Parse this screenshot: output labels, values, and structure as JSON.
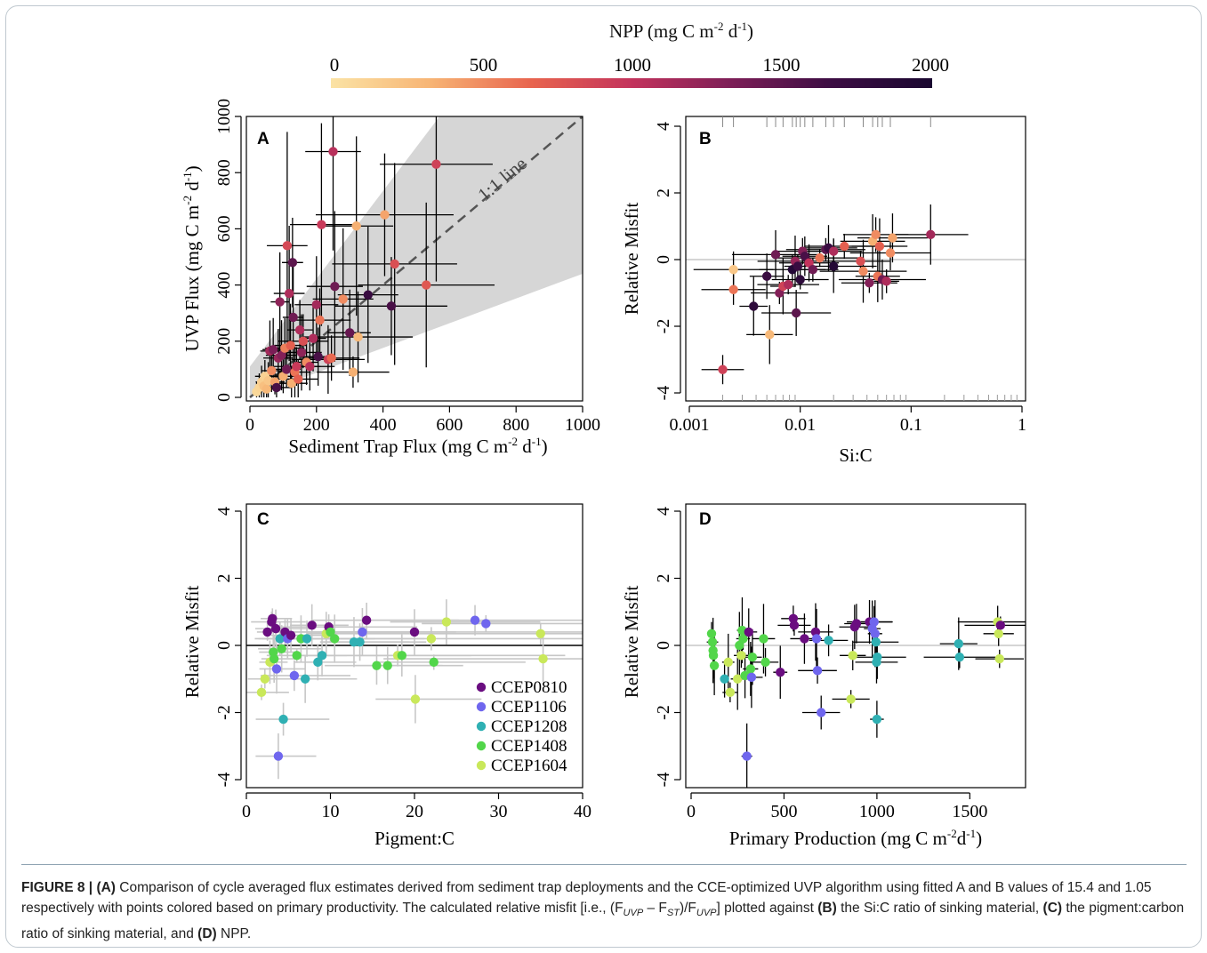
{
  "colorbar": {
    "title_pre": "NPP (mg C m",
    "title_sup1": "-2",
    "title_mid": " d",
    "title_sup2": "-1",
    "title_post": ")",
    "ticks": [
      0,
      500,
      1000,
      1500,
      2000
    ],
    "stops": [
      "#fbe3a5",
      "#f7b474",
      "#e8644e",
      "#c3335c",
      "#7c1e57",
      "#3c0d43",
      "#1a0730"
    ]
  },
  "colors": {
    "grey_line": "#c7c7c7",
    "cloud": "#d6d6d6",
    "ref_dash": "#555555"
  },
  "panels": [
    {
      "id": "A",
      "letter": "A",
      "ylabel_pre": "UVP Flux (mg C m",
      "ylabel_post": " d",
      "xlabel_pre": "Sediment Trap Flux (mg C m",
      "xlabel_post": " d",
      "yticks": [
        0,
        200,
        400,
        600,
        800,
        1000
      ],
      "xticks": [
        0,
        200,
        400,
        600,
        800,
        1000
      ],
      "annotation": "1:1 line"
    },
    {
      "id": "B",
      "letter": "B",
      "ylabel": "Relative Misfit",
      "xlabel": "Si:C",
      "yticks": [
        -4,
        -2,
        0,
        2,
        4
      ],
      "xticks": [
        "0.001",
        "0.01",
        "0.1",
        "1"
      ]
    },
    {
      "id": "C",
      "letter": "C",
      "ylabel": "Relative Misfit",
      "xlabel": "Pigment:C",
      "yticks": [
        -4,
        -2,
        0,
        2,
        4
      ],
      "xticks": [
        0,
        10,
        20,
        30,
        40
      ]
    },
    {
      "id": "D",
      "letter": "D",
      "ylabel": "Relative Misfit",
      "xlabel_pre": "Primary Production (mg C m",
      "xlabel_post": "d",
      "yticks": [
        -4,
        -2,
        0,
        2,
        4
      ],
      "xticks": [
        0,
        500,
        1000,
        1500
      ]
    }
  ],
  "sup": {
    "m2": "-2",
    "d1": "-1"
  },
  "legend": [
    {
      "name": "CCEP0810",
      "color": "#6a0d80"
    },
    {
      "name": "CCEP1106",
      "color": "#6f66ee"
    },
    {
      "name": "CCEP1208",
      "color": "#2fb0b3"
    },
    {
      "name": "CCEP1408",
      "color": "#52d64a"
    },
    {
      "name": "CCEP1604",
      "color": "#c9e85a"
    }
  ],
  "caption": {
    "fig": "FIGURE 8 | ",
    "a": "(A)",
    "t1": " Comparison of cycle averaged flux estimates derived from sediment trap deployments and the CCE-optimized UVP algorithm using fitted A and B values of 15.4 and 1.05 respectively with points colored based on primary productivity. The calculated relative misfit [i.e., (F",
    "s1": "UVP",
    "t2": " – F",
    "s2": "ST",
    "t3": ")/F",
    "s3": "UVP",
    "t4": "] plotted against ",
    "b": "(B)",
    "t5": " the Si:C ratio of sinking material, ",
    "c": "(C)",
    "t6": " the pigment:carbon ratio of sinking material, and ",
    "d": "(D)",
    "t7": " NPP."
  },
  "chart_data": [
    {
      "panel": "A",
      "type": "scatter",
      "xlim": [
        0,
        1000
      ],
      "ylim": [
        0,
        1000
      ],
      "color_by": "NPP",
      "points": [
        {
          "x": 20,
          "y": 20,
          "npp": 80
        },
        {
          "x": 28,
          "y": 35,
          "npp": 100
        },
        {
          "x": 35,
          "y": 55,
          "npp": 150
        },
        {
          "x": 42,
          "y": 40,
          "npp": 250
        },
        {
          "x": 45,
          "y": 75,
          "npp": 120
        },
        {
          "x": 50,
          "y": 30,
          "npp": 300
        },
        {
          "x": 55,
          "y": 60,
          "npp": 200
        },
        {
          "x": 60,
          "y": 165,
          "npp": 1150
        },
        {
          "x": 65,
          "y": 95,
          "npp": 500
        },
        {
          "x": 70,
          "y": 170,
          "npp": 1350
        },
        {
          "x": 75,
          "y": 55,
          "npp": 400
        },
        {
          "x": 80,
          "y": 35,
          "npp": 1600
        },
        {
          "x": 85,
          "y": 140,
          "npp": 1200
        },
        {
          "x": 90,
          "y": 340,
          "npp": 1250
        },
        {
          "x": 95,
          "y": 150,
          "npp": 1300
        },
        {
          "x": 100,
          "y": 75,
          "npp": 350
        },
        {
          "x": 105,
          "y": 175,
          "npp": 550
        },
        {
          "x": 110,
          "y": 100,
          "npp": 1400
        },
        {
          "x": 112,
          "y": 540,
          "npp": 850
        },
        {
          "x": 118,
          "y": 370,
          "npp": 1100
        },
        {
          "x": 122,
          "y": 185,
          "npp": 700
        },
        {
          "x": 125,
          "y": 50,
          "npp": 350
        },
        {
          "x": 128,
          "y": 480,
          "npp": 1500
        },
        {
          "x": 130,
          "y": 285,
          "npp": 1400
        },
        {
          "x": 135,
          "y": 90,
          "npp": 600
        },
        {
          "x": 140,
          "y": 110,
          "npp": 950
        },
        {
          "x": 145,
          "y": 65,
          "npp": 700
        },
        {
          "x": 150,
          "y": 240,
          "npp": 1100
        },
        {
          "x": 155,
          "y": 160,
          "npp": 1250
        },
        {
          "x": 160,
          "y": 200,
          "npp": 800
        },
        {
          "x": 170,
          "y": 125,
          "npp": 500
        },
        {
          "x": 180,
          "y": 110,
          "npp": 1050
        },
        {
          "x": 190,
          "y": 210,
          "npp": 1100
        },
        {
          "x": 200,
          "y": 330,
          "npp": 1150
        },
        {
          "x": 205,
          "y": 145,
          "npp": 1600
        },
        {
          "x": 210,
          "y": 275,
          "npp": 600
        },
        {
          "x": 215,
          "y": 615,
          "npp": 950
        },
        {
          "x": 235,
          "y": 135,
          "npp": 900
        },
        {
          "x": 245,
          "y": 140,
          "npp": 650
        },
        {
          "x": 250,
          "y": 875,
          "npp": 1050
        },
        {
          "x": 255,
          "y": 395,
          "npp": 1400
        },
        {
          "x": 280,
          "y": 350,
          "npp": 500
        },
        {
          "x": 300,
          "y": 230,
          "npp": 1450
        },
        {
          "x": 310,
          "y": 90,
          "npp": 350
        },
        {
          "x": 320,
          "y": 610,
          "npp": 350
        },
        {
          "x": 325,
          "y": 215,
          "npp": 300
        },
        {
          "x": 355,
          "y": 365,
          "npp": 1700
        },
        {
          "x": 405,
          "y": 650,
          "npp": 400
        },
        {
          "x": 425,
          "y": 325,
          "npp": 1600
        },
        {
          "x": 435,
          "y": 475,
          "npp": 800
        },
        {
          "x": 530,
          "y": 400,
          "npp": 750
        },
        {
          "x": 560,
          "y": 830,
          "npp": 900
        }
      ]
    },
    {
      "panel": "B",
      "type": "scatter",
      "xscale": "log",
      "xlim": [
        0.001,
        1
      ],
      "ylim": [
        -4,
        4
      ],
      "color_by": "NPP",
      "points": [
        {
          "x": 0.002,
          "y": -3.3,
          "npp": 900
        },
        {
          "x": 0.0025,
          "y": -0.3,
          "npp": 200
        },
        {
          "x": 0.0025,
          "y": -0.9,
          "npp": 600
        },
        {
          "x": 0.0038,
          "y": -1.4,
          "npp": 1800
        },
        {
          "x": 0.005,
          "y": -0.5,
          "npp": 1700
        },
        {
          "x": 0.0053,
          "y": -2.25,
          "npp": 300
        },
        {
          "x": 0.006,
          "y": 0.15,
          "npp": 1400
        },
        {
          "x": 0.0065,
          "y": -1.0,
          "npp": 1300
        },
        {
          "x": 0.007,
          "y": -0.8,
          "npp": 900
        },
        {
          "x": 0.0078,
          "y": -0.75,
          "npp": 1100
        },
        {
          "x": 0.0085,
          "y": -0.3,
          "npp": 1900
        },
        {
          "x": 0.009,
          "y": -0.05,
          "npp": 1200
        },
        {
          "x": 0.0092,
          "y": -1.6,
          "npp": 1500
        },
        {
          "x": 0.0095,
          "y": -0.2,
          "npp": 1700
        },
        {
          "x": 0.01,
          "y": -0.6,
          "npp": 1800
        },
        {
          "x": 0.0105,
          "y": 0.25,
          "npp": 1300
        },
        {
          "x": 0.011,
          "y": 0.1,
          "npp": 1600
        },
        {
          "x": 0.012,
          "y": -0.1,
          "npp": 1000
        },
        {
          "x": 0.013,
          "y": -0.3,
          "npp": 1400
        },
        {
          "x": 0.015,
          "y": 0.05,
          "npp": 600
        },
        {
          "x": 0.017,
          "y": 0.3,
          "npp": 1500
        },
        {
          "x": 0.018,
          "y": 0.35,
          "npp": 1700
        },
        {
          "x": 0.02,
          "y": -0.2,
          "npp": 1900
        },
        {
          "x": 0.02,
          "y": 0.25,
          "npp": 1100
        },
        {
          "x": 0.025,
          "y": 0.4,
          "npp": 700
        },
        {
          "x": 0.035,
          "y": -0.05,
          "npp": 800
        },
        {
          "x": 0.037,
          "y": -0.35,
          "npp": 500
        },
        {
          "x": 0.042,
          "y": -0.7,
          "npp": 1300
        },
        {
          "x": 0.045,
          "y": 0.55,
          "npp": 350
        },
        {
          "x": 0.048,
          "y": 0.75,
          "npp": 500
        },
        {
          "x": 0.05,
          "y": -0.5,
          "npp": 600
        },
        {
          "x": 0.052,
          "y": 0.4,
          "npp": 700
        },
        {
          "x": 0.055,
          "y": -0.6,
          "npp": 1400
        },
        {
          "x": 0.06,
          "y": -0.65,
          "npp": 1100
        },
        {
          "x": 0.065,
          "y": 0.2,
          "npp": 500
        },
        {
          "x": 0.068,
          "y": 0.65,
          "npp": 400
        },
        {
          "x": 0.15,
          "y": 0.75,
          "npp": 1150
        }
      ]
    },
    {
      "panel": "C",
      "type": "scatter",
      "xlim": [
        0,
        40
      ],
      "ylim": [
        -4,
        4
      ],
      "group_by": "cruise",
      "points": [
        {
          "x": 1.8,
          "y": -1.4,
          "g": 4
        },
        {
          "x": 2.2,
          "y": -1.0,
          "g": 4
        },
        {
          "x": 2.5,
          "y": 0.4,
          "g": 0
        },
        {
          "x": 2.8,
          "y": -0.5,
          "g": 4
        },
        {
          "x": 3.0,
          "y": 0.7,
          "g": 0
        },
        {
          "x": 3.1,
          "y": 0.8,
          "g": 0
        },
        {
          "x": 3.2,
          "y": -0.2,
          "g": 3
        },
        {
          "x": 3.3,
          "y": -0.4,
          "g": 3
        },
        {
          "x": 3.5,
          "y": 0.5,
          "g": 0
        },
        {
          "x": 3.6,
          "y": -0.7,
          "g": 1
        },
        {
          "x": 3.8,
          "y": -3.3,
          "g": 1
        },
        {
          "x": 4.0,
          "y": 0.2,
          "g": 2
        },
        {
          "x": 4.2,
          "y": -0.1,
          "g": 3
        },
        {
          "x": 4.4,
          "y": -2.2,
          "g": 2
        },
        {
          "x": 4.6,
          "y": 0.4,
          "g": 0
        },
        {
          "x": 4.9,
          "y": 0.2,
          "g": 1
        },
        {
          "x": 5.3,
          "y": 0.3,
          "g": 0
        },
        {
          "x": 5.7,
          "y": -0.9,
          "g": 1
        },
        {
          "x": 6.0,
          "y": -0.3,
          "g": 3
        },
        {
          "x": 6.5,
          "y": 0.2,
          "g": 3
        },
        {
          "x": 7.0,
          "y": -1.0,
          "g": 2
        },
        {
          "x": 7.2,
          "y": 0.2,
          "g": 2
        },
        {
          "x": 7.8,
          "y": 0.6,
          "g": 0
        },
        {
          "x": 8.5,
          "y": -0.5,
          "g": 2
        },
        {
          "x": 9.0,
          "y": -0.3,
          "g": 2
        },
        {
          "x": 9.5,
          "y": 0.35,
          "g": 4
        },
        {
          "x": 9.8,
          "y": 0.55,
          "g": 0
        },
        {
          "x": 10.0,
          "y": 0.4,
          "g": 3
        },
        {
          "x": 10.5,
          "y": 0.2,
          "g": 3
        },
        {
          "x": 12.8,
          "y": 0.1,
          "g": 2
        },
        {
          "x": 13.5,
          "y": 0.1,
          "g": 2
        },
        {
          "x": 13.8,
          "y": 0.4,
          "g": 1
        },
        {
          "x": 14.3,
          "y": 0.75,
          "g": 0
        },
        {
          "x": 15.5,
          "y": -0.6,
          "g": 3
        },
        {
          "x": 16.8,
          "y": -0.6,
          "g": 3
        },
        {
          "x": 18.0,
          "y": -0.3,
          "g": 4
        },
        {
          "x": 18.5,
          "y": -0.3,
          "g": 3
        },
        {
          "x": 20.0,
          "y": 0.4,
          "g": 0
        },
        {
          "x": 20.1,
          "y": -1.6,
          "g": 4
        },
        {
          "x": 22.0,
          "y": 0.2,
          "g": 4
        },
        {
          "x": 22.3,
          "y": -0.5,
          "g": 3
        },
        {
          "x": 23.8,
          "y": 0.7,
          "g": 4
        },
        {
          "x": 27.2,
          "y": 0.75,
          "g": 1
        },
        {
          "x": 28.5,
          "y": 0.65,
          "g": 1
        },
        {
          "x": 35.0,
          "y": 0.35,
          "g": 4
        },
        {
          "x": 35.3,
          "y": -0.4,
          "g": 4
        }
      ]
    },
    {
      "panel": "D",
      "type": "scatter",
      "xlim": [
        0,
        1800
      ],
      "ylim": [
        -4,
        4
      ],
      "group_by": "cruise",
      "points": [
        {
          "x": 110,
          "y": 0.35,
          "g": 3
        },
        {
          "x": 115,
          "y": 0.1,
          "g": 3
        },
        {
          "x": 118,
          "y": -0.15,
          "g": 3
        },
        {
          "x": 120,
          "y": -0.3,
          "g": 3
        },
        {
          "x": 125,
          "y": -0.6,
          "g": 3
        },
        {
          "x": 180,
          "y": -1.0,
          "g": 2
        },
        {
          "x": 200,
          "y": -0.5,
          "g": 4
        },
        {
          "x": 210,
          "y": -1.4,
          "g": 4
        },
        {
          "x": 250,
          "y": -1.0,
          "g": 4
        },
        {
          "x": 260,
          "y": 0.0,
          "g": 3
        },
        {
          "x": 270,
          "y": -0.3,
          "g": 4
        },
        {
          "x": 275,
          "y": 0.45,
          "g": 3
        },
        {
          "x": 280,
          "y": 0.2,
          "g": 3
        },
        {
          "x": 290,
          "y": -0.9,
          "g": 3
        },
        {
          "x": 300,
          "y": -3.3,
          "g": 1
        },
        {
          "x": 310,
          "y": 0.4,
          "g": 0
        },
        {
          "x": 320,
          "y": -0.7,
          "g": 3
        },
        {
          "x": 325,
          "y": -0.95,
          "g": 1
        },
        {
          "x": 330,
          "y": -0.35,
          "g": 3
        },
        {
          "x": 390,
          "y": 0.2,
          "g": 3
        },
        {
          "x": 400,
          "y": -0.5,
          "g": 3
        },
        {
          "x": 480,
          "y": -0.8,
          "g": 0
        },
        {
          "x": 550,
          "y": 0.8,
          "g": 0
        },
        {
          "x": 555,
          "y": 0.6,
          "g": 0
        },
        {
          "x": 610,
          "y": 0.2,
          "g": 0
        },
        {
          "x": 670,
          "y": 0.4,
          "g": 0
        },
        {
          "x": 675,
          "y": 0.2,
          "g": 1
        },
        {
          "x": 680,
          "y": -0.75,
          "g": 1
        },
        {
          "x": 700,
          "y": -2.0,
          "g": 1
        },
        {
          "x": 740,
          "y": 0.15,
          "g": 2
        },
        {
          "x": 860,
          "y": -1.6,
          "g": 4
        },
        {
          "x": 870,
          "y": -0.3,
          "g": 4
        },
        {
          "x": 880,
          "y": 0.55,
          "g": 0
        },
        {
          "x": 890,
          "y": 0.65,
          "g": 0
        },
        {
          "x": 960,
          "y": 0.7,
          "g": 0
        },
        {
          "x": 975,
          "y": 0.5,
          "g": 1
        },
        {
          "x": 985,
          "y": 0.7,
          "g": 1
        },
        {
          "x": 990,
          "y": 0.35,
          "g": 1
        },
        {
          "x": 995,
          "y": 0.1,
          "g": 2
        },
        {
          "x": 998,
          "y": -0.5,
          "g": 2
        },
        {
          "x": 1000,
          "y": -2.2,
          "g": 2
        },
        {
          "x": 1002,
          "y": -0.35,
          "g": 2
        },
        {
          "x": 1440,
          "y": 0.05,
          "g": 2
        },
        {
          "x": 1445,
          "y": -0.35,
          "g": 2
        },
        {
          "x": 1650,
          "y": 0.7,
          "g": 4
        },
        {
          "x": 1655,
          "y": 0.35,
          "g": 4
        },
        {
          "x": 1660,
          "y": -0.4,
          "g": 4
        },
        {
          "x": 1665,
          "y": 0.6,
          "g": 0
        }
      ]
    }
  ]
}
